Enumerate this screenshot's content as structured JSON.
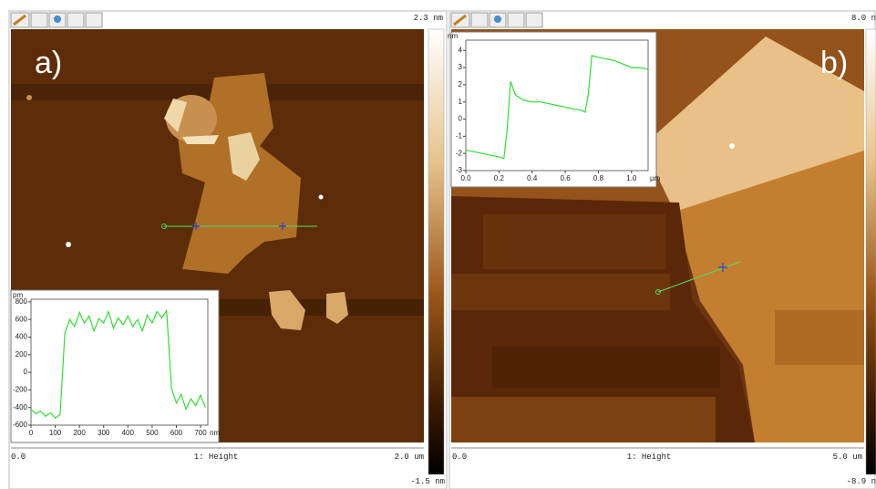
{
  "panels": [
    {
      "label": "a)",
      "scale_max": "2.3 nm",
      "scale_min": "-1.5 nm",
      "x_start": "0.0",
      "channel": "1: Height",
      "x_end": "2.0 um"
    },
    {
      "label": "b)",
      "scale_max": "8.0 n",
      "scale_min": "-8.9 n",
      "x_start": "0.0",
      "channel": "1: Height",
      "x_end": "5.0 um"
    }
  ],
  "chart_data": [
    {
      "type": "line",
      "y_unit": "pm",
      "x_unit": "nm",
      "x": [
        0,
        20,
        40,
        60,
        80,
        100,
        120,
        140,
        160,
        180,
        200,
        220,
        240,
        260,
        280,
        300,
        320,
        340,
        360,
        380,
        400,
        420,
        440,
        460,
        480,
        500,
        520,
        540,
        560,
        580,
        600,
        620,
        640,
        660,
        680,
        700,
        720
      ],
      "series": [
        {
          "color": "#33dd33",
          "values": [
            -420,
            -470,
            -440,
            -500,
            -460,
            -520,
            -480,
            450,
            600,
            520,
            680,
            560,
            640,
            470,
            610,
            560,
            690,
            500,
            620,
            540,
            640,
            520,
            600,
            470,
            650,
            560,
            690,
            620,
            700,
            -180,
            -350,
            -250,
            -420,
            -300,
            -380,
            -260,
            -400
          ]
        }
      ],
      "xlim": [
        0,
        730
      ],
      "ylim": [
        -600,
        830
      ],
      "xticks": [
        0,
        100,
        200,
        300,
        400,
        500,
        600,
        700
      ],
      "yticks": [
        -600,
        -400,
        -200,
        0,
        200,
        400,
        600,
        800
      ]
    },
    {
      "type": "line",
      "y_unit": "nm",
      "x_unit": "µm",
      "x": [
        0,
        0.05,
        0.1,
        0.15,
        0.2,
        0.23,
        0.25,
        0.27,
        0.3,
        0.35,
        0.4,
        0.45,
        0.5,
        0.55,
        0.6,
        0.65,
        0.7,
        0.72,
        0.74,
        0.76,
        0.8,
        0.85,
        0.9,
        0.95,
        1.0,
        1.05,
        1.1
      ],
      "series": [
        {
          "color": "#33dd33",
          "values": [
            -1.8,
            -1.9,
            -2.0,
            -2.1,
            -2.2,
            -2.3,
            -0.5,
            2.2,
            1.4,
            1.1,
            1.0,
            1.0,
            0.9,
            0.8,
            0.7,
            0.6,
            0.5,
            0.4,
            1.5,
            3.7,
            3.6,
            3.5,
            3.4,
            3.2,
            3.0,
            3.0,
            2.9
          ]
        }
      ],
      "xlim": [
        0,
        1.1
      ],
      "ylim": [
        -3,
        4.6
      ],
      "xticks": [
        {
          "value": 0,
          "label": "0.0"
        },
        0.2,
        0.4,
        0.6,
        0.8,
        {
          "value": 1,
          "label": "1.0"
        }
      ],
      "yticks": [
        -3,
        -2,
        -1,
        0,
        1,
        2,
        3,
        4
      ]
    }
  ]
}
